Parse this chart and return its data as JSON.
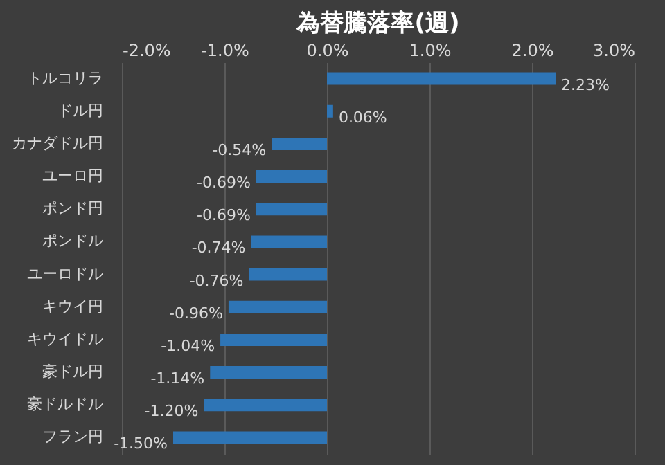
{
  "chart_data": {
    "type": "bar",
    "title": "為替騰落率(週)",
    "orientation": "horizontal",
    "categories": [
      "トルコリラ",
      "ドル円",
      "カナダドル円",
      "ユーロ円",
      "ポンド円",
      "ポンドル",
      "ユーロドル",
      "キウイ円",
      "キウイドル",
      "豪ドル円",
      "豪ドルドル",
      "フラン円"
    ],
    "values": [
      2.23,
      0.06,
      -0.54,
      -0.69,
      -0.69,
      -0.74,
      -0.76,
      -0.96,
      -1.04,
      -1.14,
      -1.2,
      -1.5
    ],
    "value_labels": [
      "2.23%",
      "0.06%",
      "-0.54%",
      "-0.69%",
      "-0.69%",
      "-0.74%",
      "-0.76%",
      "-0.96%",
      "-1.04%",
      "-1.14%",
      "-1.20%",
      "-1.50%"
    ],
    "color": "#2e75b6",
    "xlim": [
      -2,
      3
    ],
    "xticks": [
      {
        "value": -2,
        "label": "-2.0%"
      },
      {
        "value": -1,
        "label": "-1.0%"
      },
      {
        "value": 0,
        "label": "0.0%"
      },
      {
        "value": 1,
        "label": "1.0%"
      },
      {
        "value": 2,
        "label": "2.0%"
      },
      {
        "value": 3,
        "label": "3.0%"
      }
    ],
    "grid": "x"
  }
}
